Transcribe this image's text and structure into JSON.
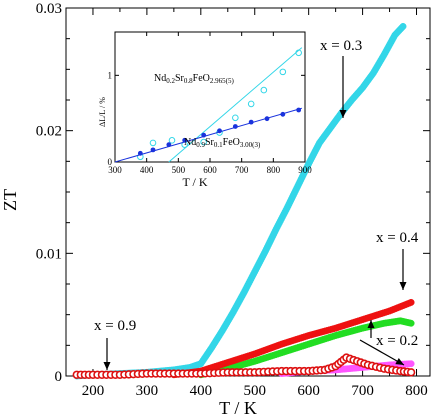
{
  "chart_data": [
    {
      "type": "scatter",
      "xlabel": "T / K",
      "ylabel": "ZT",
      "xlim": [
        150,
        825
      ],
      "ylim": [
        0,
        0.03
      ],
      "x_ticks": [
        200,
        300,
        400,
        500,
        600,
        700,
        800
      ],
      "y_ticks": [
        0,
        0.01,
        0.02,
        0.03
      ],
      "y_tick_labels": [
        "0",
        "0.01",
        "0.02",
        "0.03"
      ],
      "grid": false,
      "series": [
        {
          "name": "",
          "color": "#33d6e8",
          "marker": "filled-circle",
          "x": [
            170,
            200,
            250,
            300,
            350,
            380,
            400,
            420,
            440,
            460,
            480,
            500,
            520,
            540,
            560,
            580,
            600,
            620,
            640,
            660,
            680,
            700,
            720,
            740,
            760,
            775
          ],
          "y": [
            0,
            0.0001,
            0.0002,
            0.0003,
            0.0005,
            0.0007,
            0.001,
            0.0023,
            0.0037,
            0.0052,
            0.0068,
            0.0085,
            0.0102,
            0.012,
            0.0137,
            0.0155,
            0.0173,
            0.019,
            0.0202,
            0.0214,
            0.0225,
            0.0235,
            0.0247,
            0.0262,
            0.0278,
            0.0285
          ]
        },
        {
          "name": "",
          "color": "#ee1111",
          "marker": "filled-circle",
          "x": [
            350,
            400,
            450,
            500,
            550,
            600,
            650,
            700,
            750,
            790
          ],
          "y": [
            0.0001,
            0.0004,
            0.0011,
            0.0018,
            0.0026,
            0.0033,
            0.0039,
            0.0046,
            0.0053,
            0.006
          ]
        },
        {
          "name": "",
          "color": "#22dd22",
          "marker": "filled-circle",
          "x": [
            400,
            450,
            500,
            550,
            600,
            650,
            700,
            740,
            770,
            790
          ],
          "y": [
            0.0001,
            0.0006,
            0.0012,
            0.0019,
            0.0026,
            0.0033,
            0.0039,
            0.0043,
            0.0045,
            0.0043
          ]
        },
        {
          "name": "",
          "color": "#ff55ff",
          "marker": "filled-circle",
          "x": [
            550,
            600,
            650,
            700,
            750,
            790
          ],
          "y": [
            0.0002,
            0.0004,
            0.0005,
            0.0007,
            0.0009,
            0.001
          ]
        },
        {
          "name": "",
          "color": "#dd1111",
          "marker": "open-circle",
          "x": [
            170,
            200,
            250,
            300,
            350,
            400,
            450,
            500,
            550,
            600,
            630,
            650,
            670,
            690,
            710,
            740,
            770,
            790
          ],
          "y": [
            0.0001,
            0.0001,
            0.0001,
            0.0002,
            0.0002,
            0.0002,
            0.0003,
            0.0003,
            0.0004,
            0.0004,
            0.0005,
            0.0008,
            0.0015,
            0.0012,
            0.0009,
            0.0006,
            0.0004,
            0.0003
          ]
        }
      ],
      "annotations": [
        {
          "text": "x = 0.3",
          "at": [
            740,
            0.024
          ]
        },
        {
          "text": "x = 0.4",
          "at": [
            780,
            0.0065
          ]
        },
        {
          "text": "x = 0.2",
          "at": [
            748,
            0.0037
          ]
        },
        {
          "text": "x = 0.9",
          "at": [
            230,
            0.0006
          ]
        }
      ]
    },
    {
      "type": "scatter",
      "xlabel": "T / K",
      "ylabel": "ΔL/L / %",
      "xlim": [
        300,
        900
      ],
      "ylim": [
        0,
        1.5
      ],
      "x_ticks": [
        300,
        400,
        500,
        600,
        700,
        800,
        900
      ],
      "y_ticks": [
        0,
        1
      ],
      "grid": false,
      "series": [
        {
          "name": "Nd0.2Sr0.8FeO2.965(5)",
          "color": "#33d6e8",
          "marker": "open-circle",
          "x": [
            380,
            420,
            480,
            520,
            580,
            630,
            680,
            730,
            770,
            830,
            880
          ],
          "y": [
            0.06,
            0.22,
            0.25,
            0.2,
            0.23,
            0.34,
            0.51,
            0.67,
            0.83,
            1.04,
            1.26
          ],
          "fit": [
            [
              470,
              0
            ],
            [
              890,
              1.32
            ]
          ]
        },
        {
          "name": "Nd0.9Sr0.1FeO3.00(3)",
          "color": "#1a33dd",
          "marker": "filled-circle",
          "x": [
            380,
            420,
            470,
            520,
            580,
            630,
            680,
            730,
            780,
            830,
            880
          ],
          "y": [
            0.1,
            0.14,
            0.2,
            0.25,
            0.31,
            0.36,
            0.41,
            0.46,
            0.5,
            0.55,
            0.6
          ],
          "fit": [
            [
              300,
              0
            ],
            [
              890,
              0.62
            ]
          ]
        }
      ],
      "legend_labels": {
        "nd02": {
          "base": "Nd",
          "s1": "0.2",
          "mid": "Sr",
          "s2": "0.8",
          "tail": "FeO",
          "s3": "2.965(5)"
        },
        "nd09": {
          "base": "Nd",
          "s1": "0.9",
          "mid": "Sr",
          "s2": "0.1",
          "tail": "FeO",
          "s3": "3.00(3)"
        }
      },
      "ylabel_parts": {
        "delta": "ΔL/L / %"
      }
    }
  ]
}
